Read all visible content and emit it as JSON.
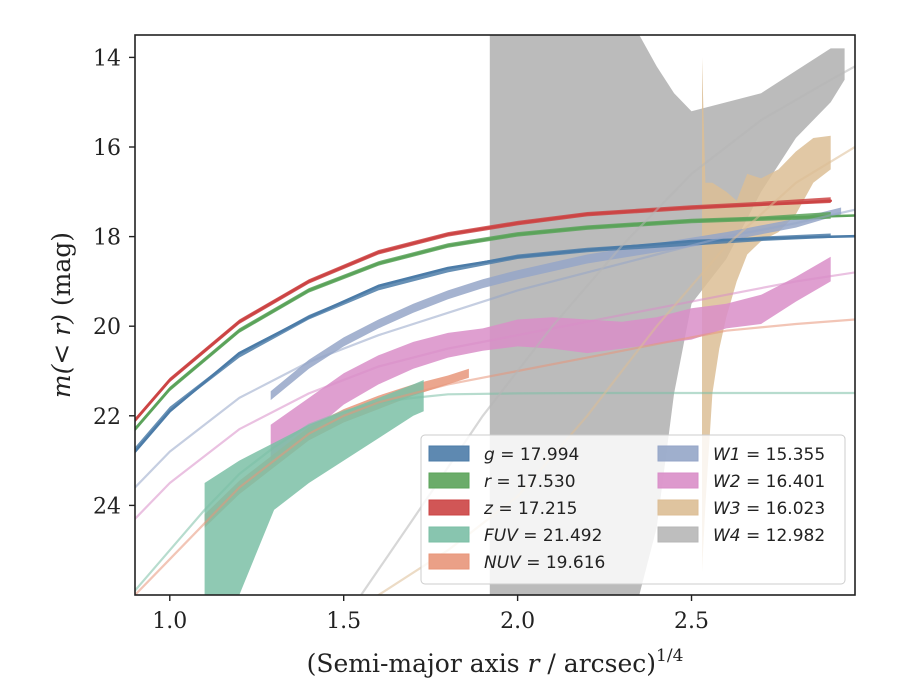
{
  "chart_data": {
    "type": "line",
    "title": "",
    "xlabel_main": "(Semi-major axis ",
    "xlabel_var": "r",
    "xlabel_tail": " / arcsec)",
    "xlabel_sup": "1/4",
    "ylabel_main": "m(< r)",
    "ylabel_tail": " (mag)",
    "xlim": [
      0.9,
      2.97
    ],
    "ylim": [
      26.0,
      13.5
    ],
    "y_inverted": true,
    "xticks": [
      1.0,
      1.5,
      2.0,
      2.5
    ],
    "xtick_labels": [
      "1.0",
      "1.5",
      "2.0",
      "2.5"
    ],
    "yticks": [
      14,
      16,
      18,
      20,
      22,
      24
    ],
    "ytick_labels": [
      "14",
      "16",
      "18",
      "20",
      "22",
      "24"
    ],
    "grid": false,
    "legend_position": "bottom-right",
    "legend_columns": 2,
    "series": [
      {
        "name": "g = 17.994",
        "color": "#4c7ca8",
        "model_x": [
          0.9,
          1.0,
          1.2,
          1.4,
          1.6,
          1.8,
          2.0,
          2.2,
          2.5,
          2.8,
          2.97
        ],
        "model_y": [
          22.8,
          21.9,
          20.6,
          19.8,
          19.1,
          18.7,
          18.45,
          18.3,
          18.1,
          18.02,
          17.99
        ],
        "band_x": [
          0.9,
          1.0,
          1.2,
          1.4,
          1.6,
          1.8,
          2.0,
          2.2,
          2.5,
          2.7,
          2.9
        ],
        "band_lo": [
          22.7,
          21.8,
          20.6,
          19.75,
          19.1,
          18.7,
          18.4,
          18.25,
          18.1,
          18.0,
          17.93
        ],
        "band_hi": [
          22.8,
          21.9,
          20.7,
          19.85,
          19.2,
          18.8,
          18.5,
          18.35,
          18.2,
          18.1,
          18.03
        ]
      },
      {
        "name": "r = 17.530",
        "color": "#5ba35a",
        "model_x": [
          0.9,
          1.0,
          1.2,
          1.4,
          1.6,
          1.8,
          2.0,
          2.2,
          2.5,
          2.8,
          2.97
        ],
        "model_y": [
          22.3,
          21.4,
          20.1,
          19.2,
          18.6,
          18.2,
          17.95,
          17.8,
          17.65,
          17.57,
          17.53
        ],
        "band_x": [
          0.9,
          1.0,
          1.2,
          1.4,
          1.6,
          1.8,
          2.0,
          2.2,
          2.5,
          2.7,
          2.9
        ],
        "band_lo": [
          22.25,
          21.35,
          20.05,
          19.15,
          18.55,
          18.15,
          17.9,
          17.75,
          17.6,
          17.55,
          17.45
        ],
        "band_hi": [
          22.35,
          21.45,
          20.15,
          19.25,
          18.65,
          18.25,
          18.0,
          17.85,
          17.7,
          17.65,
          17.6
        ]
      },
      {
        "name": "z = 17.215",
        "color": "#cc4444",
        "model_x": [
          0.9,
          1.0,
          1.2,
          1.4,
          1.6,
          1.8,
          2.0,
          2.2,
          2.5,
          2.8,
          2.9
        ],
        "model_y": [
          22.1,
          21.2,
          19.9,
          19.0,
          18.35,
          17.95,
          17.7,
          17.5,
          17.35,
          17.25,
          17.2
        ],
        "band_x": [
          0.9,
          1.0,
          1.2,
          1.4,
          1.6,
          1.8,
          2.0,
          2.2,
          2.5,
          2.7,
          2.9
        ],
        "band_lo": [
          22.05,
          21.15,
          19.85,
          18.95,
          18.3,
          17.9,
          17.65,
          17.45,
          17.3,
          17.22,
          17.12
        ],
        "band_hi": [
          22.15,
          21.25,
          19.95,
          19.05,
          18.4,
          18.0,
          17.75,
          17.55,
          17.4,
          17.32,
          17.25
        ]
      },
      {
        "name": "FUV = 21.492",
        "color": "#7bbfa6",
        "model_x": [
          0.9,
          1.0,
          1.1,
          1.2,
          1.3,
          1.4,
          1.5,
          1.6,
          1.7,
          1.8,
          2.0,
          2.2,
          2.5,
          2.97
        ],
        "model_y": [
          25.9,
          25.0,
          24.1,
          23.3,
          22.7,
          22.2,
          21.9,
          21.7,
          21.6,
          21.52,
          21.5,
          21.49,
          21.49,
          21.49
        ],
        "band_x": [
          1.1,
          1.2,
          1.3,
          1.4,
          1.5,
          1.6,
          1.7,
          1.73
        ],
        "band_lo": [
          23.5,
          23.0,
          22.6,
          22.2,
          21.9,
          21.6,
          21.3,
          21.2
        ],
        "band_hi": [
          26.0,
          26.0,
          24.1,
          23.5,
          23.0,
          22.5,
          22.0,
          21.9
        ]
      },
      {
        "name": "NUV = 19.616",
        "color": "#e8967a",
        "model_x": [
          0.9,
          1.0,
          1.1,
          1.2,
          1.3,
          1.4,
          1.5,
          1.6,
          1.8,
          2.0,
          2.2,
          2.4,
          2.6,
          2.8,
          2.97
        ],
        "model_y": [
          26.0,
          25.2,
          24.4,
          23.6,
          23.0,
          22.4,
          22.0,
          21.7,
          21.3,
          21.0,
          20.7,
          20.4,
          20.1,
          19.95,
          19.85
        ],
        "band_x": [
          1.1,
          1.2,
          1.3,
          1.4,
          1.5,
          1.6,
          1.7,
          1.8,
          1.86
        ],
        "band_lo": [
          24.2,
          23.45,
          22.85,
          22.25,
          21.85,
          21.55,
          21.3,
          21.1,
          20.95
        ],
        "band_hi": [
          24.5,
          23.75,
          23.15,
          22.55,
          22.15,
          21.85,
          21.55,
          21.3,
          21.15
        ]
      },
      {
        "name": "W1 = 15.355",
        "color": "#95a6c8",
        "model_x": [
          0.9,
          1.0,
          1.2,
          1.4,
          1.6,
          1.8,
          2.0,
          2.2,
          2.4,
          2.6,
          2.8,
          2.97
        ],
        "model_y": [
          23.6,
          22.8,
          21.6,
          20.8,
          20.2,
          19.7,
          19.2,
          18.8,
          18.4,
          18.0,
          17.7,
          17.4
        ],
        "band_x": [
          1.29,
          1.4,
          1.5,
          1.6,
          1.7,
          1.8,
          1.9,
          2.0,
          2.2,
          2.4,
          2.6,
          2.8,
          2.93
        ],
        "band_lo": [
          21.45,
          20.75,
          20.25,
          19.85,
          19.5,
          19.2,
          18.95,
          18.75,
          18.4,
          18.15,
          17.9,
          17.6,
          17.35
        ],
        "band_hi": [
          21.65,
          20.95,
          20.45,
          20.05,
          19.7,
          19.4,
          19.15,
          18.95,
          18.6,
          18.35,
          18.1,
          17.8,
          17.5
        ]
      },
      {
        "name": "W2 = 16.401",
        "color": "#d98ec8",
        "model_x": [
          0.9,
          1.0,
          1.2,
          1.4,
          1.6,
          1.8,
          2.0,
          2.2,
          2.4,
          2.6,
          2.8,
          2.97
        ],
        "model_y": [
          24.3,
          23.5,
          22.3,
          21.5,
          20.9,
          20.5,
          20.2,
          19.9,
          19.6,
          19.3,
          19.0,
          18.8
        ],
        "band_x": [
          1.29,
          1.4,
          1.5,
          1.6,
          1.7,
          1.8,
          1.9,
          2.0,
          2.1,
          2.2,
          2.3,
          2.4,
          2.5,
          2.6,
          2.7,
          2.8,
          2.9
        ],
        "band_lo": [
          22.2,
          21.6,
          21.05,
          20.65,
          20.35,
          20.15,
          20.05,
          19.85,
          19.8,
          19.85,
          19.9,
          19.8,
          19.6,
          19.5,
          19.3,
          18.9,
          18.45
        ],
        "band_hi": [
          23.0,
          22.4,
          21.75,
          21.3,
          20.95,
          20.7,
          20.55,
          20.45,
          20.5,
          20.6,
          20.5,
          20.4,
          20.3,
          20.05,
          19.95,
          19.45,
          19.0
        ]
      },
      {
        "name": "W3 = 16.023",
        "color": "#dcbe95",
        "model_x": [
          1.6,
          1.8,
          2.0,
          2.2,
          2.4,
          2.6,
          2.8,
          2.97
        ],
        "model_y": [
          26.0,
          25.0,
          23.8,
          22.0,
          20.0,
          18.2,
          16.8,
          16.0
        ],
        "band_x": [
          2.53,
          2.54,
          2.56,
          2.58,
          2.6,
          2.63,
          2.66,
          2.7,
          2.75,
          2.8,
          2.85,
          2.9
        ],
        "band_lo": [
          14.0,
          16.8,
          16.8,
          16.9,
          17.0,
          17.2,
          16.6,
          16.7,
          16.5,
          16.1,
          15.8,
          15.75
        ],
        "band_hi": [
          25.5,
          24.0,
          21.5,
          20.5,
          19.8,
          19.0,
          18.4,
          18.1,
          17.9,
          17.5,
          16.8,
          16.5
        ]
      },
      {
        "name": "W4 = 12.982",
        "color": "#b7b7b7",
        "model_x": [
          1.55,
          1.7,
          1.9,
          2.1,
          2.3,
          2.5,
          2.7,
          2.9,
          2.97
        ],
        "model_y": [
          26.0,
          24.3,
          22.0,
          20.0,
          18.2,
          16.6,
          15.4,
          14.5,
          14.2
        ],
        "band_x": [
          1.92,
          2.0,
          2.1,
          2.2,
          2.3,
          2.35,
          2.4,
          2.45,
          2.5,
          2.6,
          2.7,
          2.8,
          2.9,
          2.94
        ],
        "band_lo": [
          13.5,
          13.5,
          13.5,
          13.5,
          13.5,
          13.5,
          14.2,
          14.8,
          15.2,
          15.0,
          14.8,
          14.3,
          13.8,
          13.8
        ],
        "band_hi": [
          26.0,
          26.0,
          26.0,
          26.0,
          26.0,
          26.0,
          24.5,
          21.5,
          19.5,
          18.5,
          17.0,
          15.8,
          15.0,
          14.5
        ]
      }
    ]
  }
}
